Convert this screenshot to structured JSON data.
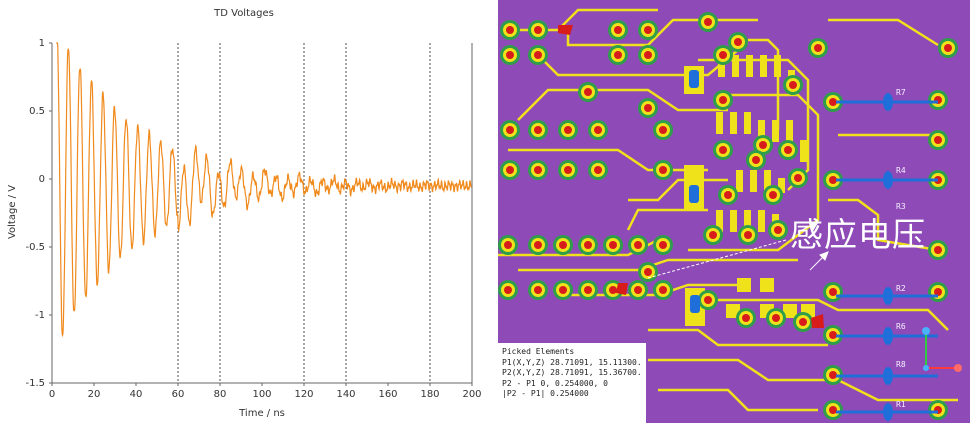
{
  "chart_data": {
    "type": "line",
    "title": "TD Voltages",
    "xlabel": "Time / ns",
    "ylabel": "Voltage / V",
    "xlim": [
      0,
      200
    ],
    "ylim": [
      -1.5,
      1
    ],
    "xticks": [
      0,
      20,
      40,
      60,
      80,
      100,
      120,
      140,
      160,
      180,
      200
    ],
    "yticks": [
      1,
      0.5,
      0,
      -0.5,
      -1,
      -1.5
    ],
    "ytick_labels": [
      "1",
      "0.5",
      "0",
      "-0.5",
      "-1",
      "-1.5"
    ],
    "vertical_gridlines_at": [
      60,
      80,
      120,
      140,
      180
    ],
    "grid": "dashed vertical",
    "series": [
      {
        "color": "#f08a1c",
        "signal": "damped oscillation",
        "period_ns": 5.5,
        "envelope_start_v": 1.2,
        "decay_constant_ns": 38,
        "offset_v": -0.05,
        "start_ns": 2
      }
    ]
  },
  "pcb": {
    "overlay_text": "感应电压",
    "designators": [
      "R7",
      "R4",
      "R3",
      "R2",
      "R6",
      "R8",
      "R1"
    ],
    "picked": {
      "title": "Picked Elements",
      "lines": [
        "P1(X,Y,Z)  28.71091, 15.11300...",
        "P2(X,Y,Z)  28.71091, 15.36700...",
        "P2 - P1    0, 0.254000, 0",
        "|P2 - P1|  0.254000"
      ]
    },
    "colors": {
      "board": "#8e4ab7",
      "trace": "#f0e21a",
      "pad": "#f0e21a",
      "via_ring": "#2e9e4a",
      "via_hole": "#d81b1b",
      "component": "#1e6fd9"
    }
  }
}
